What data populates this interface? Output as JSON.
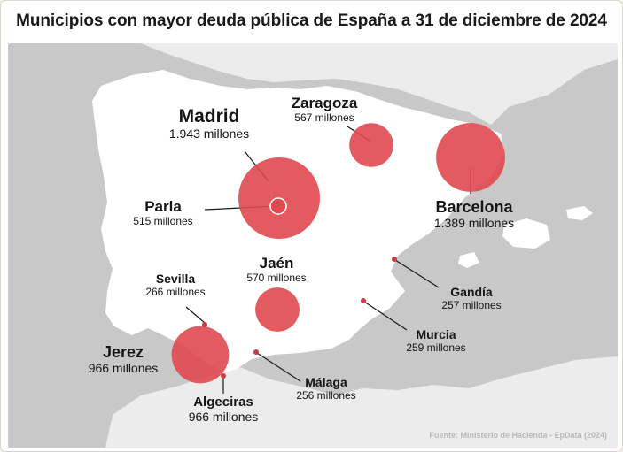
{
  "title": "Municipios con mayor deuda pública de España a 31 de diciembre de 2024",
  "source": "Fuente: Ministerio de Hacienda - EpData (2024)",
  "colors": {
    "sea": "#c8c8c8",
    "land": "#ffffff",
    "other_land": "#ececec",
    "bubble": "#e04850",
    "marker": "#cc3a42",
    "text": "#151515",
    "leader": "#1a1a1a"
  },
  "municipalities": [
    {
      "id": "madrid",
      "name": "Madrid",
      "value": "1.943 millones",
      "debt_millions": 1943
    },
    {
      "id": "barcelona",
      "name": "Barcelona",
      "value": "1.389 millones",
      "debt_millions": 1389
    },
    {
      "id": "jerez",
      "name": "Jerez",
      "value": "966 millones",
      "debt_millions": 966
    },
    {
      "id": "algeciras",
      "name": "Algeciras",
      "value": "966 millones",
      "debt_millions": 966
    },
    {
      "id": "jaen",
      "name": "Jaén",
      "value": "570 millones",
      "debt_millions": 570
    },
    {
      "id": "zaragoza",
      "name": "Zaragoza",
      "value": "567 millones",
      "debt_millions": 567
    },
    {
      "id": "parla",
      "name": "Parla",
      "value": "515 millones",
      "debt_millions": 515
    },
    {
      "id": "sevilla",
      "name": "Sevilla",
      "value": "266 millones",
      "debt_millions": 266
    },
    {
      "id": "murcia",
      "name": "Murcia",
      "value": "259 millones",
      "debt_millions": 259
    },
    {
      "id": "gandia",
      "name": "Gandía",
      "value": "257 millones",
      "debt_millions": 257
    },
    {
      "id": "malaga",
      "name": "Málaga",
      "value": "256 millones",
      "debt_millions": 256
    }
  ]
}
